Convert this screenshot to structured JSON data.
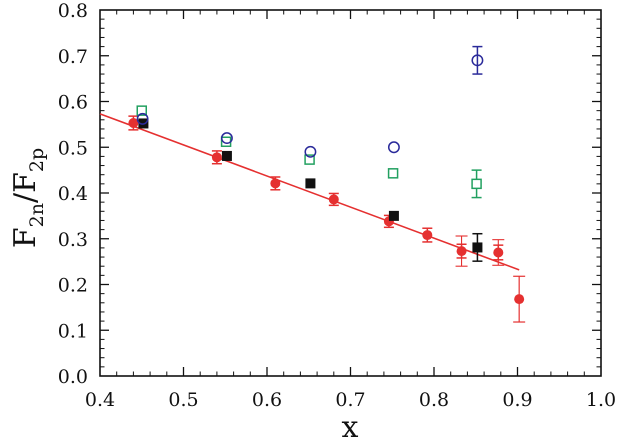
{
  "chart_data": {
    "type": "scatter",
    "xlabel": "x",
    "ylabel": {
      "main1": "F",
      "sub1": "2n",
      "slash": "/",
      "main2": "F",
      "sub2": "2p"
    },
    "xlim": [
      0.4,
      1.0
    ],
    "ylim": [
      0.0,
      0.8
    ],
    "xticks": [
      "0.4",
      "0.5",
      "0.6",
      "0.7",
      "0.8",
      "0.9",
      "1.0"
    ],
    "yticks": [
      "0.0",
      "0.1",
      "0.2",
      "0.3",
      "0.4",
      "0.5",
      "0.6",
      "0.7",
      "0.8"
    ],
    "grid": false,
    "legend": "none",
    "fit_line": {
      "x": [
        0.4,
        0.902
      ],
      "y": [
        0.573,
        0.232
      ],
      "color": "#e53030"
    },
    "series": [
      {
        "marker": "filled-circle",
        "color": "#e53030",
        "points": [
          {
            "x": 0.44,
            "y": 0.553,
            "err": 0.015
          },
          {
            "x": 0.54,
            "y": 0.478,
            "err": 0.014
          },
          {
            "x": 0.61,
            "y": 0.421,
            "err": 0.014
          },
          {
            "x": 0.68,
            "y": 0.386,
            "err": 0.013
          },
          {
            "x": 0.746,
            "y": 0.338,
            "err": 0.013
          },
          {
            "x": 0.792,
            "y": 0.308,
            "err": 0.015
          },
          {
            "x": 0.833,
            "y": 0.273,
            "err": 0.015,
            "outer": 0.033
          },
          {
            "x": 0.877,
            "y": 0.27,
            "err": 0.016,
            "outer": 0.028
          },
          {
            "x": 0.902,
            "y": 0.168,
            "err": 0.05
          }
        ]
      },
      {
        "marker": "filled-square",
        "color": "#111111",
        "points": [
          {
            "x": 0.452,
            "y": 0.552
          },
          {
            "x": 0.552,
            "y": 0.481
          },
          {
            "x": 0.652,
            "y": 0.421
          },
          {
            "x": 0.752,
            "y": 0.35
          },
          {
            "x": 0.852,
            "y": 0.281,
            "err": 0.03
          }
        ]
      },
      {
        "marker": "open-square",
        "color": "#22a060",
        "points": [
          {
            "x": 0.45,
            "y": 0.58
          },
          {
            "x": 0.551,
            "y": 0.512
          },
          {
            "x": 0.651,
            "y": 0.473
          },
          {
            "x": 0.751,
            "y": 0.443
          },
          {
            "x": 0.851,
            "y": 0.42,
            "err": 0.03
          }
        ]
      },
      {
        "marker": "open-circle",
        "color": "#2a2a9a",
        "points": [
          {
            "x": 0.451,
            "y": 0.562
          },
          {
            "x": 0.552,
            "y": 0.52
          },
          {
            "x": 0.652,
            "y": 0.49
          },
          {
            "x": 0.752,
            "y": 0.5
          },
          {
            "x": 0.852,
            "y": 0.69,
            "err": 0.03
          }
        ]
      }
    ]
  }
}
